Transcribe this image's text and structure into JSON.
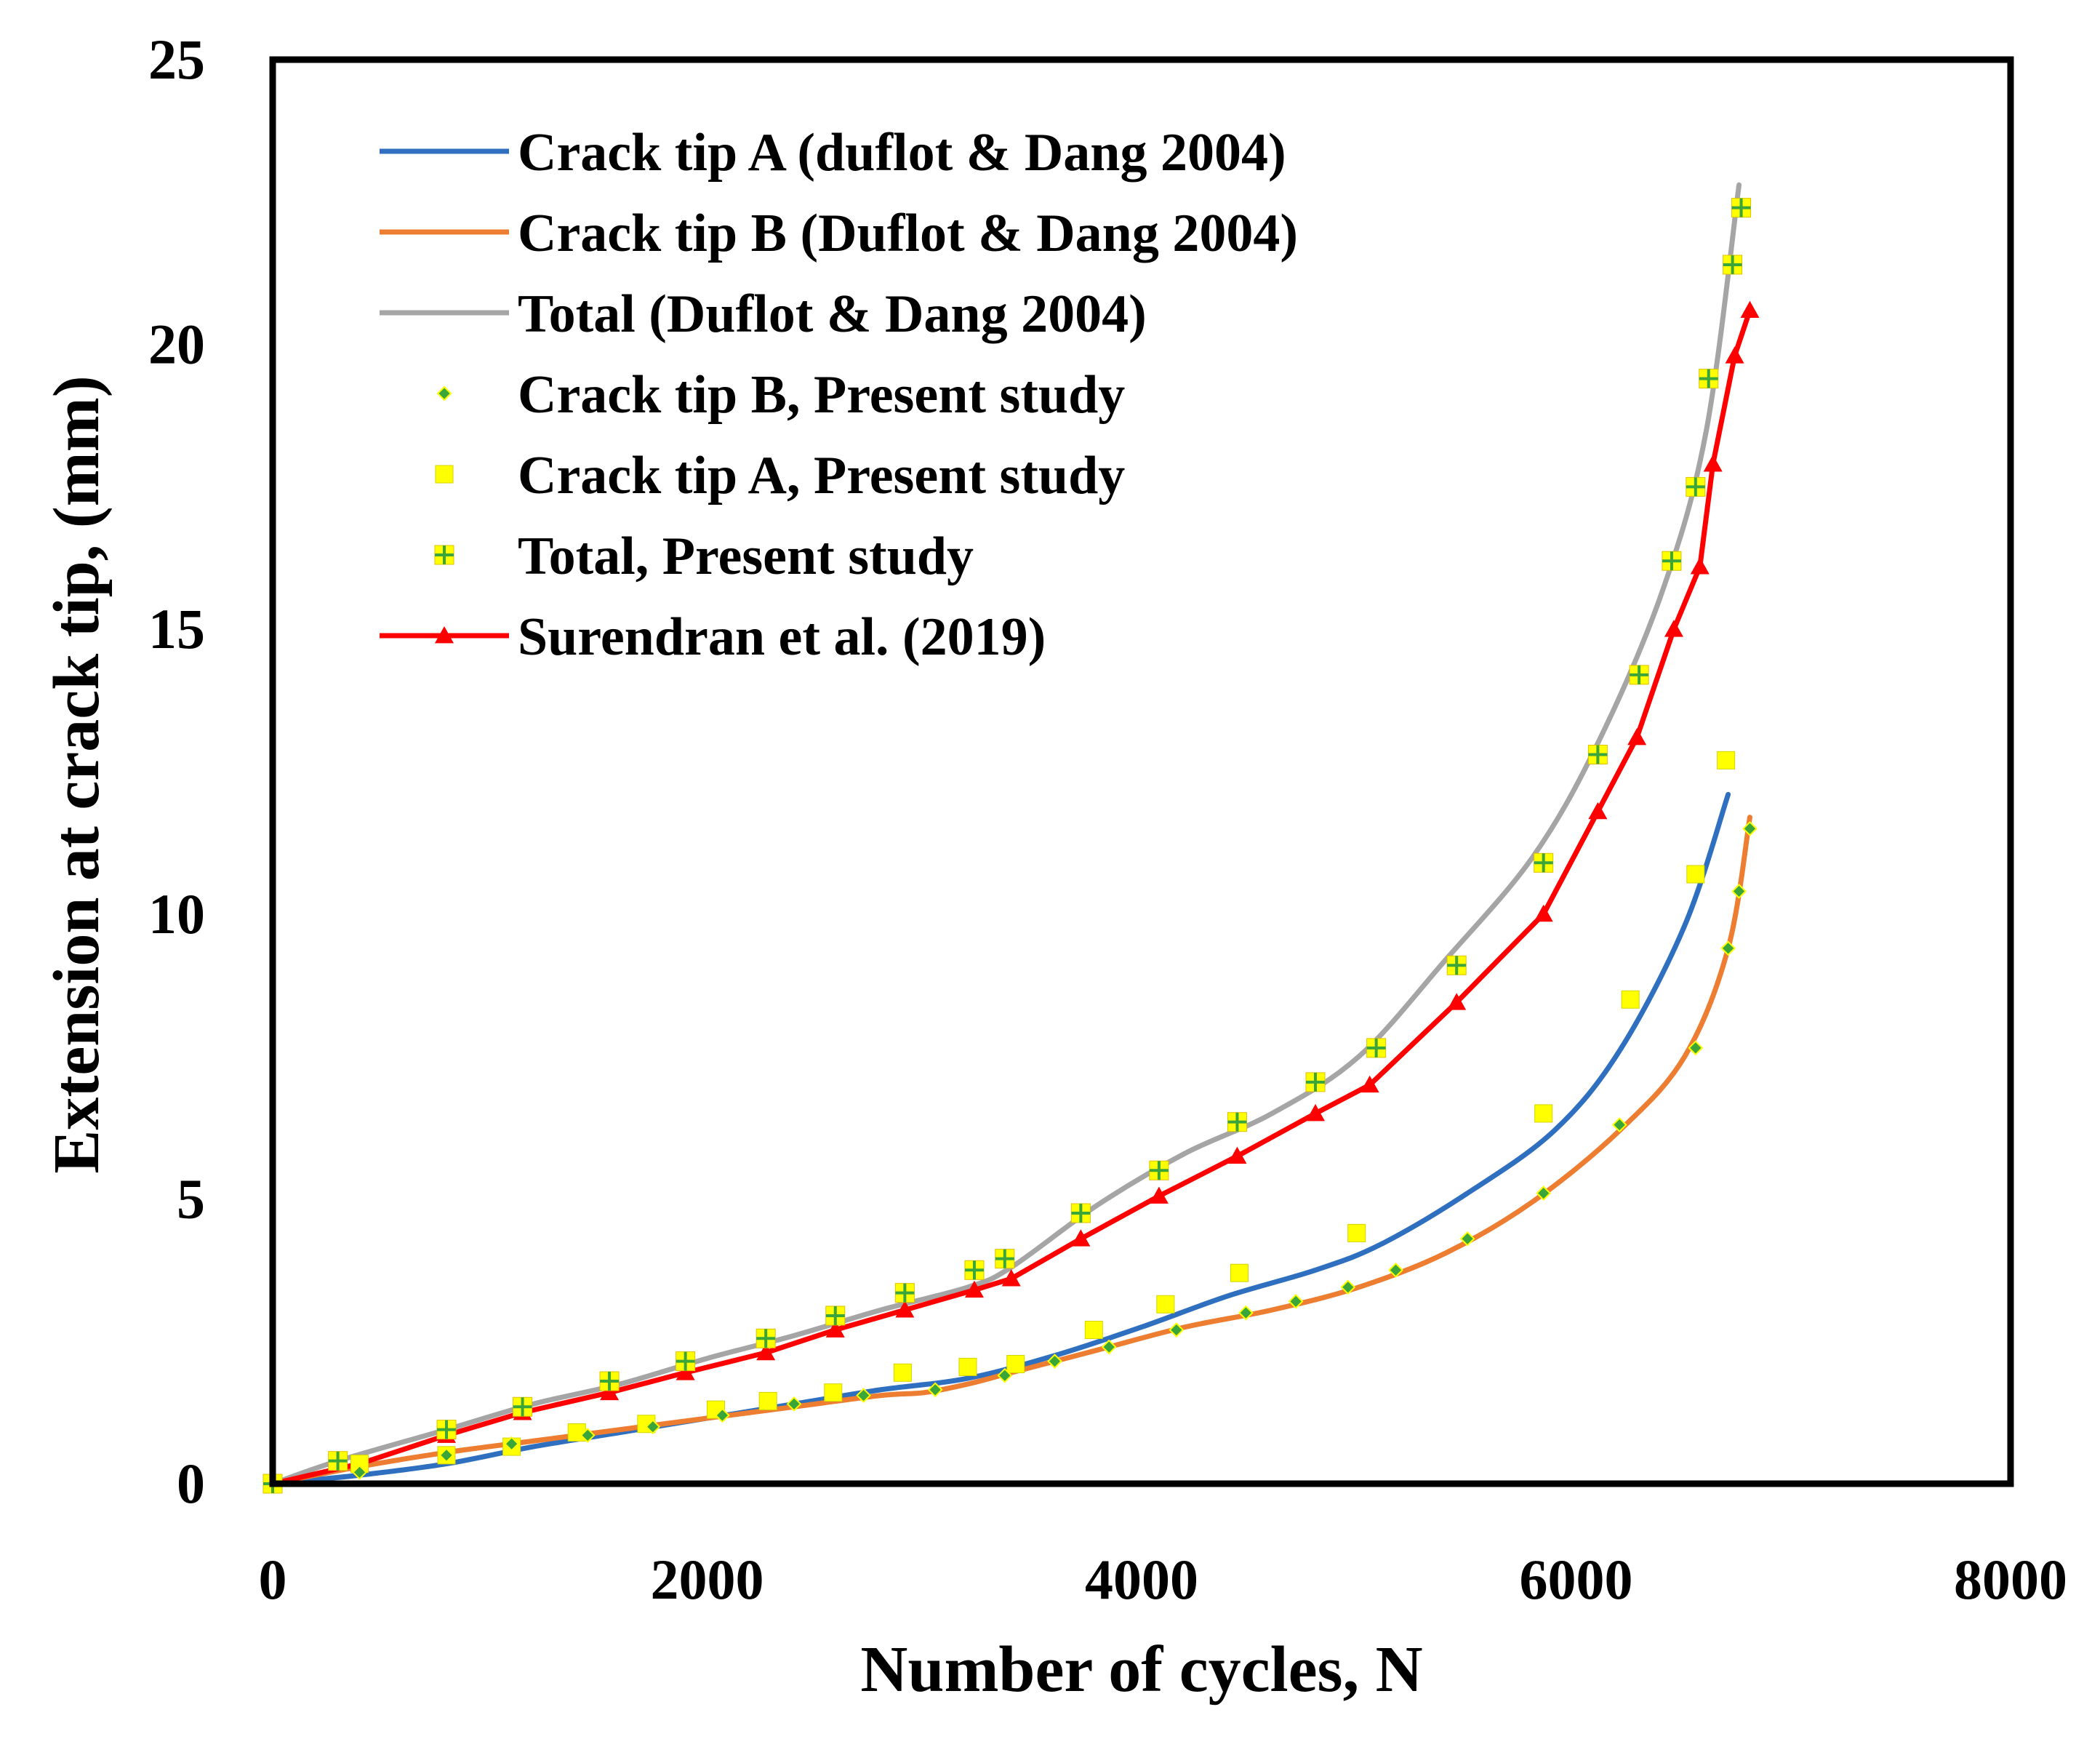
{
  "chart_data": {
    "type": "line",
    "title": "",
    "xlabel": "Number of cycles, N",
    "ylabel": "Extension at crack tip, (mm)",
    "xlim": [
      0,
      8000
    ],
    "ylim": [
      0,
      25
    ],
    "xticks": [
      "0",
      "2000",
      "4000",
      "6000",
      "8000"
    ],
    "yticks": [
      "0",
      "5",
      "10",
      "15",
      "20",
      "25"
    ],
    "grid": false,
    "legend_position": "top-left",
    "colors": {
      "crack_a_line": "#2e6fbf",
      "crack_b_line": "#ed7d31",
      "total_line": "#a5a5a5",
      "surendran": "#ff0000",
      "marker_yellow": "#ffff00",
      "marker_green": "#3aa63a"
    },
    "series": [
      {
        "name": "Crack tip A (duflot & Dang 2004)",
        "style": "line",
        "color": "#2e6fbf",
        "x": [
          0,
          400,
          800,
          1200,
          1600,
          2000,
          2400,
          2800,
          3200,
          3600,
          4000,
          4400,
          4800,
          5100,
          5500,
          5900,
          6200,
          6500,
          6700
        ],
        "y": [
          0,
          0.15,
          0.35,
          0.65,
          0.9,
          1.15,
          1.4,
          1.65,
          1.85,
          2.25,
          2.75,
          3.3,
          3.75,
          4.2,
          5.1,
          6.2,
          7.6,
          9.8,
          12.1
        ]
      },
      {
        "name": "Crack tip B (Duflot & Dang 2004)",
        "style": "line",
        "color": "#ed7d31",
        "x": [
          0,
          400,
          800,
          1200,
          1600,
          2000,
          2400,
          2800,
          3000,
          3200,
          3400,
          3800,
          4200,
          4600,
          5000,
          5400,
          5800,
          6200,
          6500,
          6700,
          6800
        ],
        "y": [
          0,
          0.3,
          0.55,
          0.75,
          0.95,
          1.15,
          1.35,
          1.55,
          1.6,
          1.75,
          1.95,
          2.35,
          2.75,
          3.05,
          3.45,
          4.05,
          4.95,
          6.2,
          7.5,
          9.4,
          11.7
        ]
      },
      {
        "name": "Total (Duflot & Dang 2004)",
        "style": "line",
        "color": "#a5a5a5",
        "x": [
          0,
          300,
          800,
          1200,
          1600,
          2000,
          2400,
          2800,
          3200,
          3400,
          3800,
          4200,
          4600,
          5000,
          5400,
          5800,
          6100,
          6400,
          6600,
          6750
        ],
        "y": [
          0,
          0.4,
          0.95,
          1.4,
          1.75,
          2.2,
          2.6,
          3.05,
          3.45,
          3.8,
          4.9,
          5.8,
          6.5,
          7.5,
          9.2,
          11.0,
          13.0,
          15.7,
          18.5,
          22.8
        ]
      },
      {
        "name": "Crack tip B, Present study",
        "style": "marker",
        "marker": "diamond",
        "color": "#3aa63a",
        "x": [
          0,
          400,
          800,
          1100,
          1450,
          1750,
          2070,
          2400,
          2720,
          3050,
          3370,
          3600,
          3850,
          4160,
          4480,
          4710,
          4950,
          5170,
          5500,
          5850,
          6200,
          6550,
          6700,
          6750,
          6800
        ],
        "y": [
          0,
          0.2,
          0.5,
          0.7,
          0.85,
          1.0,
          1.2,
          1.4,
          1.55,
          1.65,
          1.9,
          2.15,
          2.4,
          2.7,
          3.0,
          3.2,
          3.45,
          3.75,
          4.3,
          5.1,
          6.3,
          7.65,
          9.4,
          10.4,
          11.5
        ]
      },
      {
        "name": "Crack tip A, Present study",
        "style": "marker",
        "marker": "square",
        "color": "#ffff00",
        "x": [
          0,
          400,
          800,
          1100,
          1400,
          1720,
          2040,
          2280,
          2580,
          2900,
          3200,
          3420,
          3780,
          4110,
          4450,
          4990,
          5850,
          6250,
          6550,
          6690
        ],
        "y": [
          0,
          0.35,
          0.5,
          0.65,
          0.9,
          1.05,
          1.3,
          1.45,
          1.6,
          1.95,
          2.05,
          2.1,
          2.7,
          3.15,
          3.7,
          4.4,
          6.5,
          8.5,
          10.7,
          12.7
        ]
      },
      {
        "name": "Total, Present study",
        "style": "marker",
        "marker": "square-cross",
        "color": "#ffff00",
        "x": [
          0,
          300,
          800,
          1150,
          1550,
          1900,
          2270,
          2590,
          2910,
          3230,
          3370,
          3720,
          4080,
          4440,
          4800,
          5080,
          5450,
          5850,
          6100,
          6290,
          6440,
          6550,
          6610,
          6720,
          6760
        ],
        "y": [
          0,
          0.4,
          0.95,
          1.35,
          1.8,
          2.15,
          2.55,
          2.95,
          3.35,
          3.75,
          3.95,
          4.75,
          5.5,
          6.35,
          7.05,
          7.65,
          9.1,
          10.9,
          12.8,
          14.2,
          16.2,
          17.5,
          19.4,
          21.4,
          22.4
        ]
      },
      {
        "name": "Surendran et al. (2019)",
        "style": "line-marker",
        "marker": "triangle",
        "color": "#ff0000",
        "x": [
          0,
          400,
          800,
          1150,
          1550,
          1900,
          2270,
          2590,
          2910,
          3230,
          3400,
          3720,
          4080,
          4440,
          4800,
          5050,
          5450,
          5850,
          6100,
          6280,
          6450,
          6570,
          6630,
          6730,
          6800
        ],
        "y": [
          0,
          0.35,
          0.85,
          1.25,
          1.6,
          1.95,
          2.3,
          2.7,
          3.05,
          3.4,
          3.6,
          4.3,
          5.05,
          5.75,
          6.5,
          7.0,
          8.45,
          10.0,
          11.8,
          13.1,
          15.0,
          16.1,
          17.9,
          19.8,
          20.6
        ]
      }
    ]
  }
}
